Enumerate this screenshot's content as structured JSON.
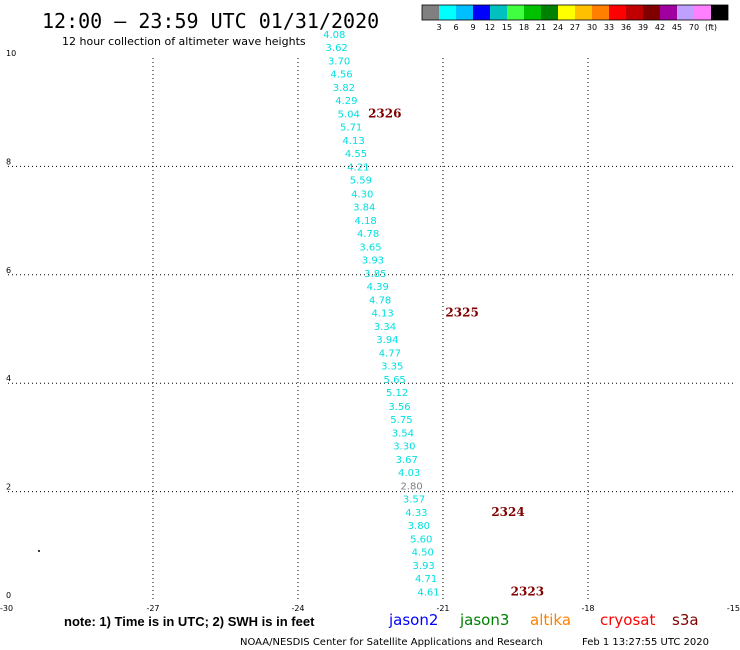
{
  "header": {
    "title": "12:00 – 23:59 UTC 01/31/2020",
    "subtitle": "12 hour collection of altimeter wave heights"
  },
  "colorbar": {
    "labels": [
      "3",
      "6",
      "9",
      "12",
      "15",
      "18",
      "21",
      "24",
      "27",
      "30",
      "33",
      "36",
      "39",
      "42",
      "45",
      "70",
      "(ft)"
    ],
    "colors": [
      "#808080",
      "#00ffff",
      "#00bfff",
      "#0000ff",
      "#00c0c0",
      "#40ff40",
      "#00c000",
      "#008000",
      "#ffff00",
      "#ffc000",
      "#ff8000",
      "#ff0000",
      "#c00000",
      "#800000",
      "#a000a0",
      "#c0a0ff",
      "#ff80ff",
      "#000000"
    ]
  },
  "note": "note:  1) Time is in UTC;  2) SWH is in feet",
  "satellites": [
    {
      "name": "jason2",
      "color": "#0000ff"
    },
    {
      "name": "jason3",
      "color": "#008000"
    },
    {
      "name": "altika",
      "color": "#ff8000"
    },
    {
      "name": "cryosat",
      "color": "#ff0000"
    },
    {
      "name": "s3a",
      "color": "#800000"
    }
  ],
  "credit": "NOAA/NESDIS Center for Satellite Applications and Research",
  "timestamp": "Feb  1 13:27:55 UTC 2020",
  "chart_data": {
    "type": "scatter",
    "xlim": [
      -30,
      -15
    ],
    "ylim": [
      0,
      10
    ],
    "x_ticks": [
      "-30",
      "-27",
      "-24",
      "-21",
      "-18",
      "-15"
    ],
    "y_ticks": [
      "0",
      "2",
      "4",
      "6",
      "8",
      "10"
    ],
    "grid": true,
    "swh_color": "#00e0e0",
    "points": [
      {
        "lon": -21.3,
        "lat": 0.08,
        "swh": "4.61"
      },
      {
        "lon": -21.35,
        "lat": 0.33,
        "swh": "4.71"
      },
      {
        "lon": -21.4,
        "lat": 0.57,
        "swh": "3.93"
      },
      {
        "lon": -21.42,
        "lat": 0.82,
        "swh": "4.50"
      },
      {
        "lon": -21.45,
        "lat": 1.06,
        "swh": "5.60"
      },
      {
        "lon": -21.5,
        "lat": 1.31,
        "swh": "3.80"
      },
      {
        "lon": -21.55,
        "lat": 1.55,
        "swh": "4.33"
      },
      {
        "lon": -21.6,
        "lat": 1.8,
        "swh": "3.57"
      },
      {
        "lon": -21.65,
        "lat": 2.04,
        "swh": "2.80",
        "color": "#808080"
      },
      {
        "lon": -21.7,
        "lat": 2.29,
        "swh": "4.03"
      },
      {
        "lon": -21.75,
        "lat": 2.53,
        "swh": "3.67"
      },
      {
        "lon": -21.8,
        "lat": 2.78,
        "swh": "3.30"
      },
      {
        "lon": -21.83,
        "lat": 3.02,
        "swh": "3.54"
      },
      {
        "lon": -21.86,
        "lat": 3.27,
        "swh": "5.75"
      },
      {
        "lon": -21.9,
        "lat": 3.51,
        "swh": "3.56"
      },
      {
        "lon": -21.95,
        "lat": 3.76,
        "swh": "5.12"
      },
      {
        "lon": -22.0,
        "lat": 4.0,
        "swh": "5.65"
      },
      {
        "lon": -22.05,
        "lat": 4.25,
        "swh": "3.35"
      },
      {
        "lon": -22.1,
        "lat": 4.49,
        "swh": "4.77"
      },
      {
        "lon": -22.15,
        "lat": 4.74,
        "swh": "3.94"
      },
      {
        "lon": -22.2,
        "lat": 4.98,
        "swh": "3.34"
      },
      {
        "lon": -22.25,
        "lat": 5.23,
        "swh": "4.13"
      },
      {
        "lon": -22.3,
        "lat": 5.47,
        "swh": "4.78"
      },
      {
        "lon": -22.35,
        "lat": 5.72,
        "swh": "4.39"
      },
      {
        "lon": -22.4,
        "lat": 5.96,
        "swh": "3.85"
      },
      {
        "lon": -22.45,
        "lat": 6.21,
        "swh": "3.93"
      },
      {
        "lon": -22.5,
        "lat": 6.45,
        "swh": "3.65"
      },
      {
        "lon": -22.55,
        "lat": 6.7,
        "swh": "4.78"
      },
      {
        "lon": -22.6,
        "lat": 6.94,
        "swh": "4.18"
      },
      {
        "lon": -22.63,
        "lat": 7.19,
        "swh": "3.84"
      },
      {
        "lon": -22.67,
        "lat": 7.43,
        "swh": "4.30"
      },
      {
        "lon": -22.7,
        "lat": 7.68,
        "swh": "5.59"
      },
      {
        "lon": -22.75,
        "lat": 7.92,
        "swh": "4.21"
      },
      {
        "lon": -22.8,
        "lat": 8.17,
        "swh": "4.55"
      },
      {
        "lon": -22.85,
        "lat": 8.41,
        "swh": "4.13"
      },
      {
        "lon": -22.9,
        "lat": 8.66,
        "swh": "5.71"
      },
      {
        "lon": -22.95,
        "lat": 8.9,
        "swh": "5.04"
      },
      {
        "lon": -23.0,
        "lat": 9.15,
        "swh": "4.29"
      },
      {
        "lon": -23.05,
        "lat": 9.39,
        "swh": "3.82"
      },
      {
        "lon": -23.1,
        "lat": 9.64,
        "swh": "4.56"
      },
      {
        "lon": -23.15,
        "lat": 9.88,
        "swh": "3.70"
      },
      {
        "lon": -23.2,
        "lat": 10.13,
        "swh": "3.62"
      },
      {
        "lon": -23.25,
        "lat": 10.37,
        "swh": "4.08"
      }
    ],
    "pass_labels": [
      {
        "lon": -19.6,
        "lat": 0.08,
        "label": "2323"
      },
      {
        "lon": -20.0,
        "lat": 1.55,
        "label": "2324"
      },
      {
        "lon": -20.95,
        "lat": 5.23,
        "label": "2325"
      },
      {
        "lon": -22.55,
        "lat": 8.9,
        "label": "2326"
      }
    ]
  }
}
